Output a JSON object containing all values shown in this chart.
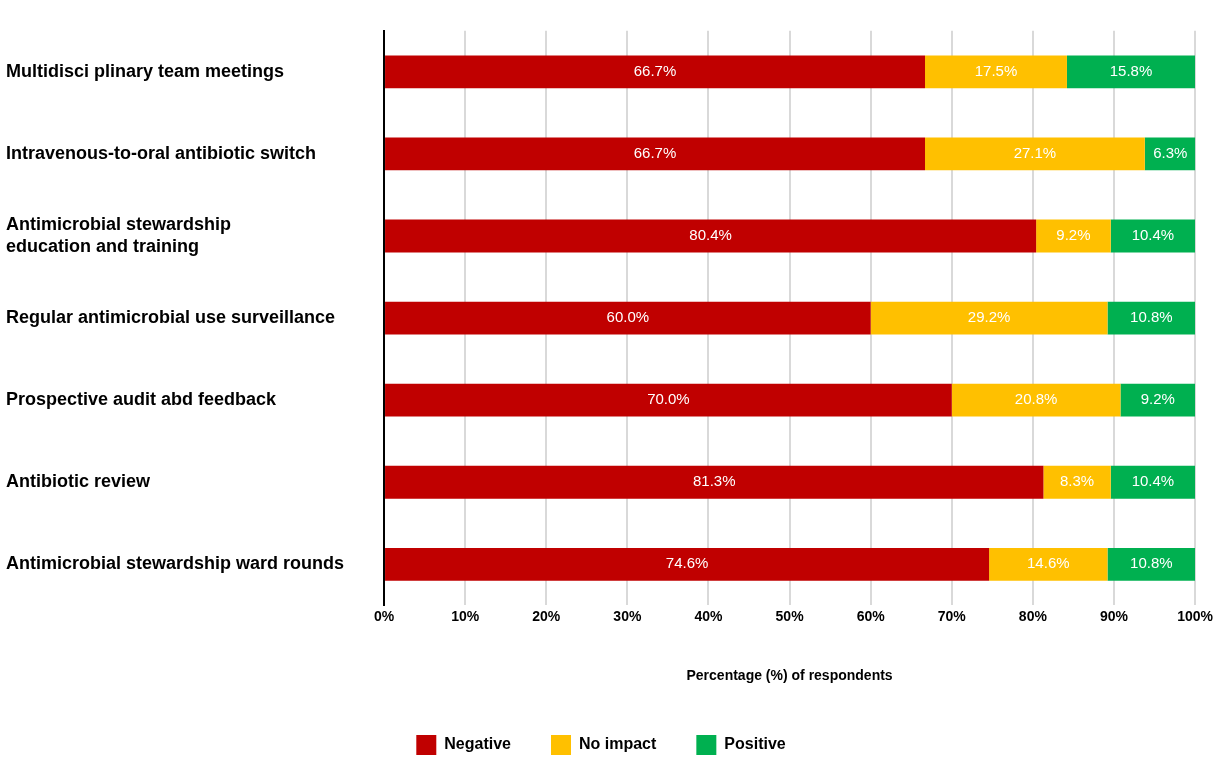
{
  "chart_data": {
    "type": "bar",
    "orientation": "horizontal",
    "stacked": true,
    "xlabel": "Percentage (%) of respondents",
    "categories": [
      "Multidisci plinary team meetings",
      "Intravenous-to-oral antibiotic switch",
      "Antimicrobial stewardship education and training",
      "Regular antimicrobial use surveillance",
      "Prospective audit abd feedback",
      "Antibiotic review",
      "Antimicrobial stewardship ward rounds"
    ],
    "series": [
      {
        "name": "Negative",
        "color": "#c00000",
        "values": [
          66.7,
          66.7,
          80.4,
          60.0,
          70.0,
          81.3,
          74.6
        ],
        "value_labels": [
          "66.7%",
          "66.7%",
          "80.4%",
          "60.0%",
          "70.0%",
          "81.3%",
          "74.6%"
        ]
      },
      {
        "name": "No impact",
        "color": "#ffc000",
        "values": [
          17.5,
          27.1,
          9.2,
          29.2,
          20.8,
          8.3,
          14.6
        ],
        "value_labels": [
          "17.5%",
          "27.1%",
          "9.2%",
          "29.2%",
          "20.8%",
          "8.3%",
          "14.6%"
        ]
      },
      {
        "name": "Positive",
        "color": "#00b050",
        "values": [
          15.8,
          6.3,
          10.4,
          10.8,
          9.2,
          10.4,
          10.8
        ],
        "value_labels": [
          "15.8%",
          "6.3%",
          "10.4%",
          "10.8%",
          "9.2%",
          "10.4%",
          "10.8%"
        ]
      }
    ],
    "xlim": [
      0,
      100
    ],
    "xticks": [
      {
        "value": 0,
        "label": "0%"
      },
      {
        "value": 10,
        "label": "10%"
      },
      {
        "value": 20,
        "label": "20%"
      },
      {
        "value": 30,
        "label": "30%"
      },
      {
        "value": 40,
        "label": "40%"
      },
      {
        "value": 50,
        "label": "50%"
      },
      {
        "value": 60,
        "label": "60%"
      },
      {
        "value": 70,
        "label": "70%"
      },
      {
        "value": 80,
        "label": "80%"
      },
      {
        "value": 90,
        "label": "90%"
      },
      {
        "value": 100,
        "label": "100%"
      }
    ],
    "grid": "x",
    "legend": "bottom"
  }
}
